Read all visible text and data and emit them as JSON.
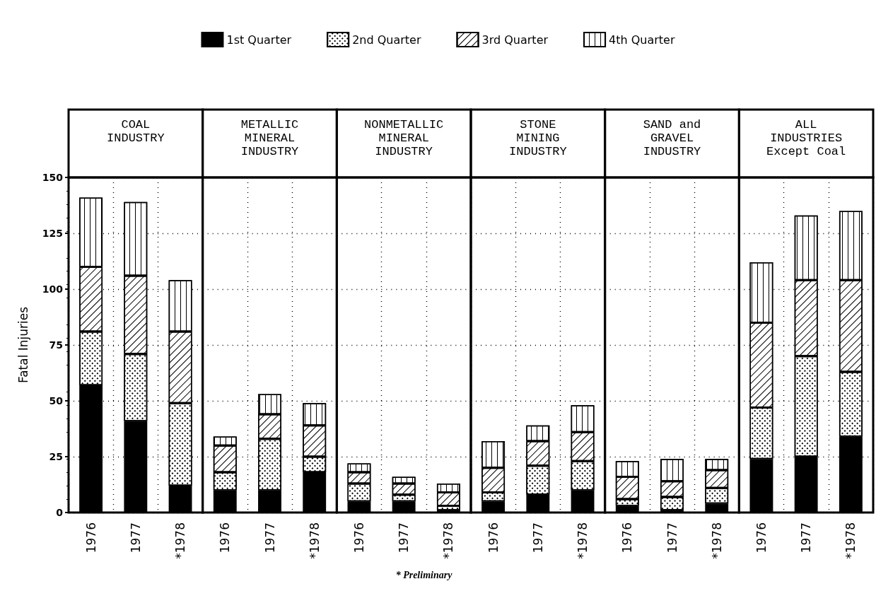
{
  "chart_data": [
    {
      "type": "bar",
      "stacked": true,
      "title": "COAL\nINDUSTRY",
      "ylabel": "Fatal Injuries",
      "categories": [
        "1976",
        "1977",
        "*1978"
      ],
      "series": [
        {
          "name": "1st Quarter",
          "color": "#000000",
          "values": [
            57,
            41,
            12
          ]
        },
        {
          "name": "2nd Quarter",
          "color": "#ffffff",
          "values": [
            24,
            30,
            37
          ]
        },
        {
          "name": "3rd Quarter",
          "color": "#ffffff",
          "values": [
            29,
            35,
            32
          ]
        },
        {
          "name": "4th Quarter",
          "color": "#ffffff",
          "values": [
            31,
            33,
            23
          ]
        }
      ],
      "ylim": [
        0,
        150
      ],
      "yticks": [
        0,
        25,
        50,
        75,
        100,
        125,
        150
      ],
      "grid": true,
      "legend": "top",
      "annotations": [
        "* Preliminary"
      ]
    },
    {
      "type": "bar",
      "stacked": true,
      "title": "METALLIC\nMINERAL\nINDUSTRY",
      "categories": [
        "1976",
        "1977",
        "*1978"
      ],
      "series": [
        {
          "color": "#000000",
          "values": [
            10,
            10,
            18
          ]
        },
        {
          "color": "#ffffff",
          "values": [
            8,
            23,
            7
          ]
        },
        {
          "color": "#ffffff",
          "values": [
            12,
            11,
            14
          ]
        },
        {
          "color": "#ffffff",
          "values": [
            4,
            9,
            10
          ]
        }
      ],
      "ylim": [
        0,
        150
      ],
      "yticks": [
        0,
        25,
        50,
        75,
        100,
        125,
        150
      ],
      "grid": true,
      "tick_labels": "x"
    },
    {
      "type": "bar",
      "stacked": true,
      "title": "NONMETALLIC\nMINERAL\nINDUSTRY",
      "categories": [
        "1976",
        "1977",
        "*1978"
      ],
      "series": [
        {
          "color": "#000000",
          "values": [
            5,
            5,
            1
          ]
        },
        {
          "color": "#ffffff",
          "values": [
            8,
            3,
            2
          ]
        },
        {
          "color": "#ffffff",
          "values": [
            5,
            5,
            6
          ]
        },
        {
          "color": "#ffffff",
          "values": [
            4,
            3,
            4
          ]
        }
      ],
      "ylim": [
        0,
        150
      ],
      "yticks": [
        0,
        25,
        50,
        75,
        100,
        125,
        150
      ],
      "grid": true,
      "tick_labels": "x"
    },
    {
      "type": "bar",
      "stacked": true,
      "title": "STONE\nMINING\nINDUSTRY",
      "categories": [
        "1976",
        "1977",
        "*1978"
      ],
      "series": [
        {
          "color": "#000000",
          "values": [
            5,
            8,
            10
          ]
        },
        {
          "color": "#ffffff",
          "values": [
            4,
            13,
            13
          ]
        },
        {
          "color": "#ffffff",
          "values": [
            11,
            11,
            13
          ]
        },
        {
          "color": "#ffffff",
          "values": [
            12,
            7,
            12
          ]
        }
      ],
      "ylim": [
        0,
        150
      ],
      "yticks": [
        0,
        25,
        50,
        75,
        100,
        125,
        150
      ],
      "grid": true,
      "tick_labels": "x"
    },
    {
      "type": "bar",
      "stacked": true,
      "title": "SAND and\nGRAVEL\nINDUSTRY",
      "categories": [
        "1976",
        "1977",
        "*1978"
      ],
      "series": [
        {
          "color": "#000000",
          "values": [
            3,
            1,
            4
          ]
        },
        {
          "color": "#ffffff",
          "values": [
            3,
            6,
            7
          ]
        },
        {
          "color": "#ffffff",
          "values": [
            10,
            7,
            8
          ]
        },
        {
          "color": "#ffffff",
          "values": [
            7,
            10,
            5
          ]
        }
      ],
      "ylim": [
        0,
        150
      ],
      "yticks": [
        0,
        25,
        50,
        75,
        100,
        125,
        150
      ],
      "grid": true,
      "tick_labels": "x"
    },
    {
      "type": "bar",
      "stacked": true,
      "title": "ALL\nINDUSTRIES\nExcept Coal",
      "categories": [
        "1976",
        "1977",
        "*1978"
      ],
      "series": [
        {
          "color": "#000000",
          "values": [
            24,
            25,
            34
          ]
        },
        {
          "color": "#ffffff",
          "values": [
            23,
            45,
            29
          ]
        },
        {
          "color": "#ffffff",
          "values": [
            38,
            34,
            41
          ]
        },
        {
          "color": "#ffffff",
          "values": [
            27,
            29,
            31
          ]
        }
      ],
      "ylim": [
        0,
        150
      ],
      "yticks": [
        0,
        25,
        50,
        75,
        100,
        125,
        150
      ],
      "grid": true,
      "tick_labels": "x"
    }
  ]
}
